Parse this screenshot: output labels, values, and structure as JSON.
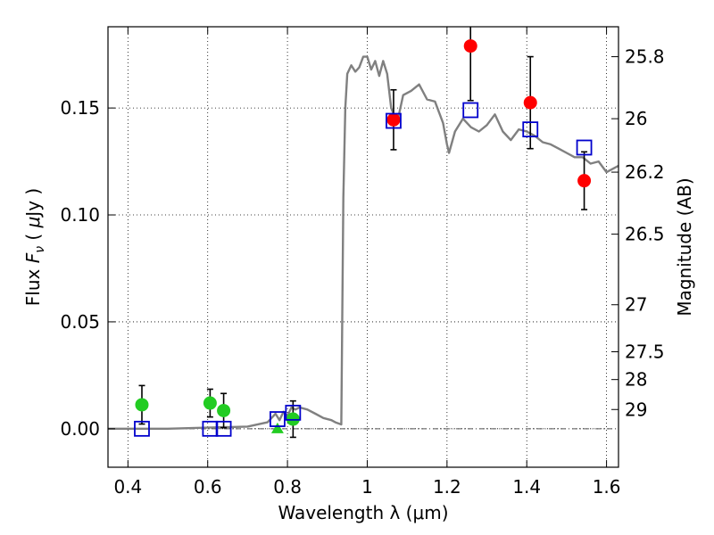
{
  "chart_data": {
    "type": "scatter",
    "title": "",
    "xlabel": "Wavelength  λ (μm)",
    "ylabel": "Flux  F_ν  ( μJy )",
    "ylabel_parts": {
      "a": "Flux  ",
      "b": "F",
      "c": "ν",
      "d": "  ( ",
      "e": "μ",
      "f": "Jy )"
    },
    "y2label": "Magnitude (AB)",
    "xlim": [
      0.35,
      1.63
    ],
    "ylim": [
      -0.018,
      0.188
    ],
    "grid": true,
    "x_ticks": [
      0.4,
      0.6,
      0.8,
      1.0,
      1.2,
      1.4,
      1.6
    ],
    "x_tick_labels": [
      "0.4",
      "0.6",
      "0.8",
      "1",
      "1.2",
      "1.4",
      "1.6"
    ],
    "y_ticks": [
      0.0,
      0.05,
      0.1,
      0.15
    ],
    "y_tick_labels": [
      "0.00",
      "0.05",
      "0.10",
      "0.15"
    ],
    "y2_ticks": [
      {
        "label": "25.8",
        "flux": 0.174
      },
      {
        "label": "26",
        "flux": 0.145
      },
      {
        "label": "26.2",
        "flux": 0.12
      },
      {
        "label": "26.5",
        "flux": 0.091
      },
      {
        "label": "27",
        "flux": 0.058
      },
      {
        "label": "27.5",
        "flux": 0.036
      },
      {
        "label": "28",
        "flux": 0.023
      },
      {
        "label": "29",
        "flux": 0.009
      }
    ],
    "model_sed": {
      "color": "#808080",
      "points": [
        [
          0.35,
          0.0
        ],
        [
          0.5,
          0.0
        ],
        [
          0.6,
          0.0005
        ],
        [
          0.7,
          0.001
        ],
        [
          0.75,
          0.003
        ],
        [
          0.77,
          0.007
        ],
        [
          0.78,
          0.004
        ],
        [
          0.79,
          0.008
        ],
        [
          0.8,
          0.006
        ],
        [
          0.81,
          0.01
        ],
        [
          0.82,
          0.009
        ],
        [
          0.83,
          0.01
        ],
        [
          0.85,
          0.009
        ],
        [
          0.87,
          0.007
        ],
        [
          0.89,
          0.005
        ],
        [
          0.91,
          0.004
        ],
        [
          0.92,
          0.003
        ],
        [
          0.935,
          0.002
        ],
        [
          0.94,
          0.108
        ],
        [
          0.945,
          0.15
        ],
        [
          0.95,
          0.166
        ],
        [
          0.96,
          0.17
        ],
        [
          0.97,
          0.167
        ],
        [
          0.98,
          0.169
        ],
        [
          0.99,
          0.174
        ],
        [
          1.0,
          0.174
        ],
        [
          1.01,
          0.168
        ],
        [
          1.02,
          0.172
        ],
        [
          1.03,
          0.165
        ],
        [
          1.04,
          0.172
        ],
        [
          1.05,
          0.166
        ],
        [
          1.06,
          0.15
        ],
        [
          1.075,
          0.143
        ],
        [
          1.09,
          0.156
        ],
        [
          1.11,
          0.158
        ],
        [
          1.13,
          0.161
        ],
        [
          1.15,
          0.154
        ],
        [
          1.17,
          0.153
        ],
        [
          1.18,
          0.148
        ],
        [
          1.19,
          0.143
        ],
        [
          1.2,
          0.133
        ],
        [
          1.205,
          0.129
        ],
        [
          1.22,
          0.139
        ],
        [
          1.24,
          0.145
        ],
        [
          1.26,
          0.141
        ],
        [
          1.28,
          0.139
        ],
        [
          1.3,
          0.142
        ],
        [
          1.32,
          0.147
        ],
        [
          1.34,
          0.139
        ],
        [
          1.36,
          0.135
        ],
        [
          1.38,
          0.14
        ],
        [
          1.4,
          0.139
        ],
        [
          1.42,
          0.137
        ],
        [
          1.44,
          0.134
        ],
        [
          1.46,
          0.133
        ],
        [
          1.48,
          0.131
        ],
        [
          1.5,
          0.129
        ],
        [
          1.52,
          0.127
        ],
        [
          1.54,
          0.127
        ],
        [
          1.56,
          0.124
        ],
        [
          1.58,
          0.125
        ],
        [
          1.6,
          0.12
        ],
        [
          1.62,
          0.122
        ],
        [
          1.63,
          0.123
        ]
      ]
    },
    "zero_line": {
      "y": 0.0,
      "color": "#555555"
    },
    "series": [
      {
        "marker": "circle",
        "color": "#22cc22",
        "points": [
          {
            "x": 0.435,
            "y": 0.0112,
            "err": 0.009
          },
          {
            "x": 0.606,
            "y": 0.012,
            "err": 0.0065
          },
          {
            "x": 0.64,
            "y": 0.0085,
            "err": 0.008
          },
          {
            "x": 0.814,
            "y": 0.0045,
            "err": 0.0085
          }
        ]
      },
      {
        "marker": "triangle",
        "color": "#22cc22",
        "points": [
          {
            "x": 0.775,
            "y": 0.0,
            "err": 0.0
          }
        ]
      },
      {
        "marker": "circle",
        "color": "#ff0000",
        "points": [
          {
            "x": 1.066,
            "y": 0.1445,
            "err": 0.014
          },
          {
            "x": 1.259,
            "y": 0.179,
            "err": 0.0255
          },
          {
            "x": 1.409,
            "y": 0.1525,
            "err": 0.0215
          },
          {
            "x": 1.544,
            "y": 0.116,
            "err": 0.0135
          }
        ]
      },
      {
        "marker": "square",
        "color": "#0000cc",
        "points": [
          {
            "x": 0.435,
            "y": 0.0
          },
          {
            "x": 0.606,
            "y": 0.0
          },
          {
            "x": 0.64,
            "y": 0.0
          },
          {
            "x": 0.775,
            "y": 0.0045
          },
          {
            "x": 0.814,
            "y": 0.0075
          },
          {
            "x": 1.066,
            "y": 0.144
          },
          {
            "x": 1.259,
            "y": 0.149
          },
          {
            "x": 1.409,
            "y": 0.14
          },
          {
            "x": 1.544,
            "y": 0.1315
          }
        ]
      }
    ]
  }
}
